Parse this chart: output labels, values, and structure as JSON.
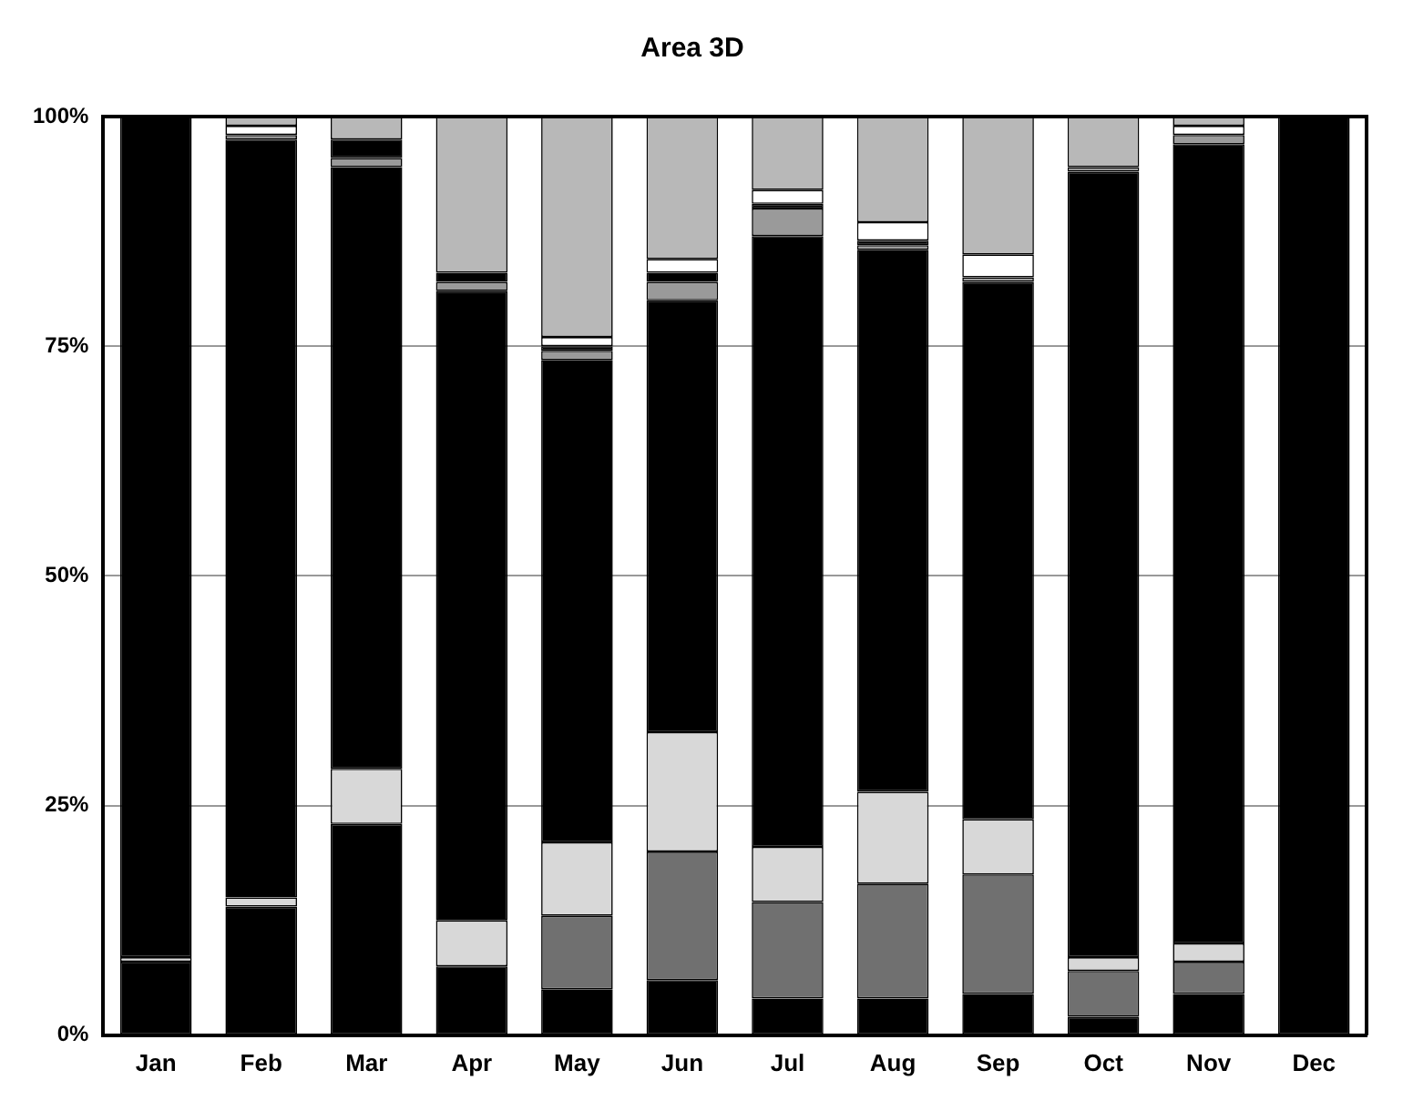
{
  "chart_data": {
    "type": "bar",
    "title": "Area 3D",
    "stacked": true,
    "categories": [
      "Jan",
      "Feb",
      "Mar",
      "Apr",
      "May",
      "Jun",
      "Jul",
      "Aug",
      "Sep",
      "Oct",
      "Nov",
      "Dec"
    ],
    "series": [
      {
        "color": "#000000",
        "values": [
          8,
          14,
          23,
          7.5,
          5,
          6,
          4,
          4,
          4.5,
          2,
          4.5,
          0
        ]
      },
      {
        "color": "#707070",
        "values": [
          0,
          0,
          0,
          0,
          8,
          14,
          10.5,
          12.5,
          13,
          5,
          3.5,
          0
        ]
      },
      {
        "color": "#d8d8d8",
        "values": [
          0.5,
          1,
          6,
          5,
          8,
          13,
          6,
          10,
          6,
          1.5,
          2,
          0
        ]
      },
      {
        "color": "#000000",
        "values": [
          91.5,
          82.5,
          65.5,
          68.5,
          52.5,
          47,
          66.5,
          59,
          58.5,
          85.5,
          87,
          100
        ]
      },
      {
        "color": "#9a9a9a",
        "values": [
          0,
          0.5,
          1,
          1,
          1,
          2,
          3,
          0.5,
          0.5,
          0.5,
          1,
          0
        ]
      },
      {
        "color": "#000000",
        "values": [
          0,
          0,
          2,
          1,
          0.5,
          1,
          0.5,
          0.5,
          0,
          0,
          0,
          0
        ]
      },
      {
        "color": "#ffffff",
        "values": [
          0,
          1,
          0,
          0,
          1,
          1.5,
          1.5,
          2,
          2.5,
          0,
          1,
          0
        ]
      },
      {
        "color": "#b8b8b8",
        "values": [
          0,
          1,
          2.5,
          17,
          24,
          15.5,
          8,
          11.5,
          15,
          5.5,
          1,
          0
        ]
      }
    ],
    "ylim": [
      0,
      100
    ],
    "yticks": [
      {
        "value": 0,
        "label": "0%"
      },
      {
        "value": 25,
        "label": "25%"
      },
      {
        "value": 50,
        "label": "50%"
      },
      {
        "value": 75,
        "label": "75%"
      },
      {
        "value": 100,
        "label": "100%"
      }
    ],
    "grid": "y",
    "legend": false
  }
}
